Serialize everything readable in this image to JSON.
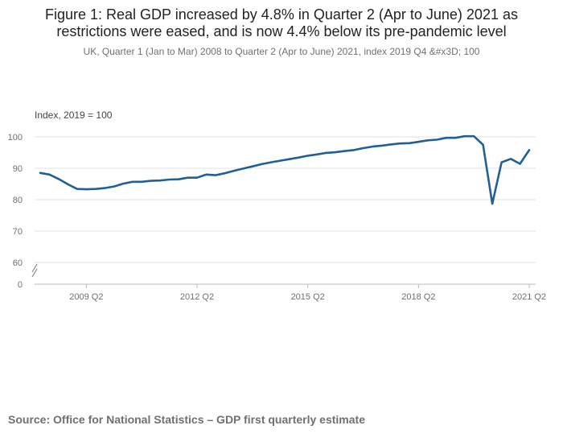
{
  "chart_data": {
    "type": "line",
    "title": "Figure 1: Real GDP increased by 4.8% in Quarter 2 (Apr to June) 2021 as restrictions were eased, and is now 4.4% below its pre-pandemic level",
    "subtitle": "UK, Quarter 1 (Jan to Mar) 2008 to Quarter 2 (Apr to June) 2021, index 2019 Q4 &#x3D; 100",
    "ylabel": "Index, 2019 = 100",
    "xlabel": "",
    "y_ticks": [
      0,
      60,
      70,
      80,
      90,
      100
    ],
    "ylim": [
      58,
      103
    ],
    "axis_break": true,
    "x_tick_labels": [
      {
        "label": "2009 Q2",
        "index": 5
      },
      {
        "label": "2012 Q2",
        "index": 17
      },
      {
        "label": "2015 Q2",
        "index": 29
      },
      {
        "label": "2018 Q2",
        "index": 41
      },
      {
        "label": "2021 Q2",
        "index": 53
      }
    ],
    "series": [
      {
        "name": "Real GDP",
        "color": "#206095",
        "x": [
          "2008 Q1",
          "2008 Q2",
          "2008 Q3",
          "2008 Q4",
          "2009 Q1",
          "2009 Q2",
          "2009 Q3",
          "2009 Q4",
          "2010 Q1",
          "2010 Q2",
          "2010 Q3",
          "2010 Q4",
          "2011 Q1",
          "2011 Q2",
          "2011 Q3",
          "2011 Q4",
          "2012 Q1",
          "2012 Q2",
          "2012 Q3",
          "2012 Q4",
          "2013 Q1",
          "2013 Q2",
          "2013 Q3",
          "2013 Q4",
          "2014 Q1",
          "2014 Q2",
          "2014 Q3",
          "2014 Q4",
          "2015 Q1",
          "2015 Q2",
          "2015 Q3",
          "2015 Q4",
          "2016 Q1",
          "2016 Q2",
          "2016 Q3",
          "2016 Q4",
          "2017 Q1",
          "2017 Q2",
          "2017 Q3",
          "2017 Q4",
          "2018 Q1",
          "2018 Q2",
          "2018 Q3",
          "2018 Q4",
          "2019 Q1",
          "2019 Q2",
          "2019 Q3",
          "2019 Q4",
          "2020 Q1",
          "2020 Q2",
          "2020 Q3",
          "2020 Q4",
          "2021 Q1",
          "2021 Q2"
        ],
        "values": [
          88.5,
          88.0,
          86.6,
          84.9,
          83.4,
          83.3,
          83.4,
          83.7,
          84.2,
          85.1,
          85.7,
          85.7,
          86.0,
          86.1,
          86.4,
          86.5,
          87.0,
          87.0,
          88.0,
          87.8,
          88.4,
          89.2,
          89.9,
          90.6,
          91.3,
          91.9,
          92.4,
          92.9,
          93.4,
          94.0,
          94.4,
          94.9,
          95.1,
          95.5,
          95.8,
          96.4,
          96.9,
          97.2,
          97.6,
          97.9,
          98.0,
          98.4,
          98.9,
          99.1,
          99.7,
          99.7,
          100.2,
          100.2,
          97.5,
          78.7,
          91.9,
          93.0,
          91.4,
          95.8
        ]
      }
    ]
  },
  "source": "Source: Office for National Statistics – GDP first quarterly estimate"
}
